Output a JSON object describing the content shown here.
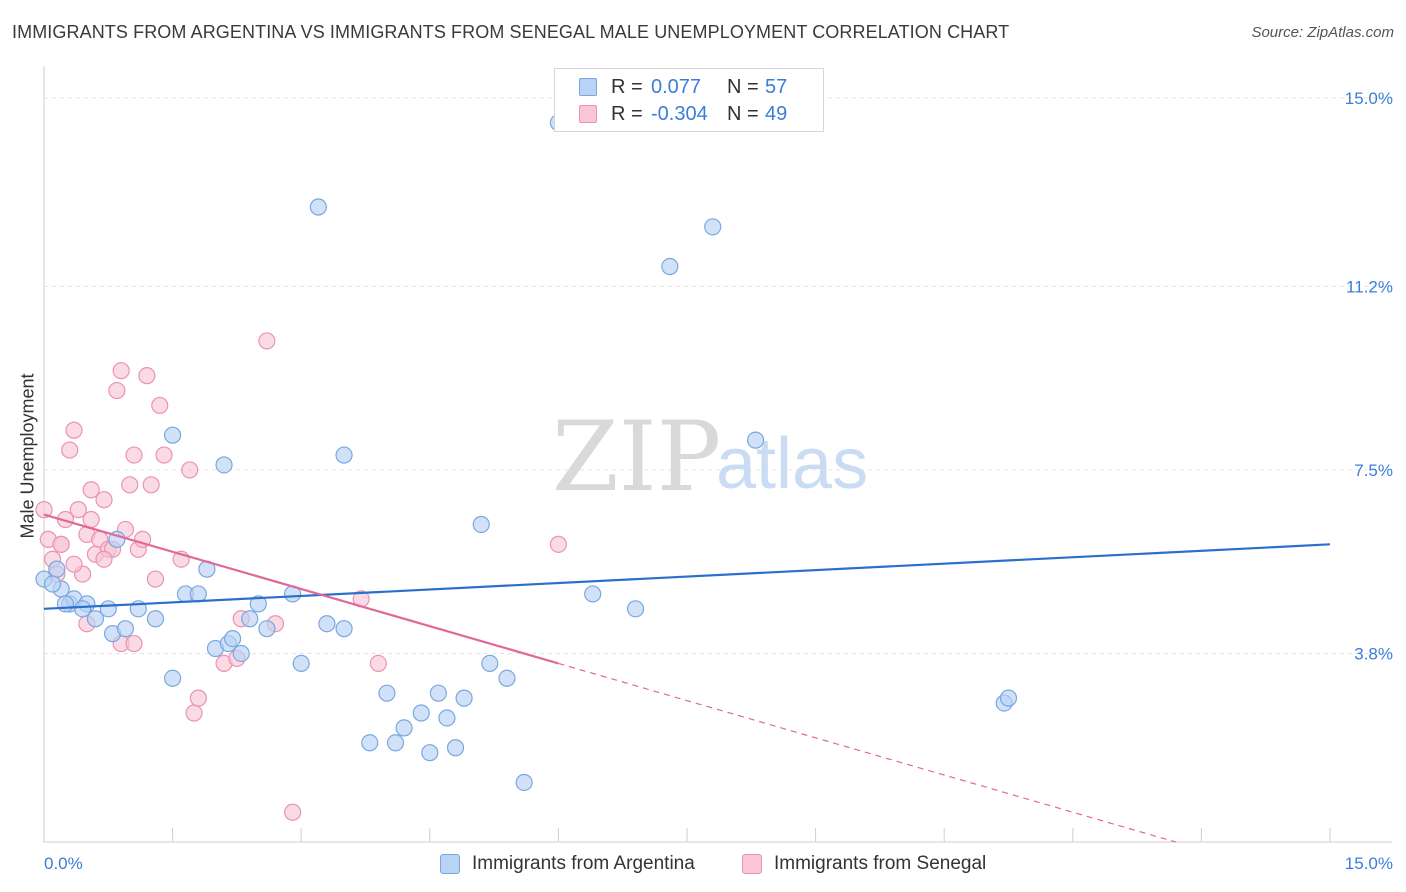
{
  "title": "IMMIGRANTS FROM ARGENTINA VS IMMIGRANTS FROM SENEGAL MALE UNEMPLOYMENT CORRELATION CHART",
  "source": "Source: ZipAtlas.com",
  "watermark": {
    "zip": "ZIP",
    "atlas": "atlas"
  },
  "legend": {
    "series1": {
      "r_label": "R =",
      "r_value": "0.077",
      "n_label": "N =",
      "n_value": "57"
    },
    "series2": {
      "r_label": "R =",
      "r_value": "-0.304",
      "n_label": "N =",
      "n_value": "49"
    }
  },
  "colors": {
    "blue_fill": "#b9d3f5",
    "blue_stroke": "#7aa7e0",
    "blue_line": "#2b6fcc",
    "pink_fill": "#f8c6d6",
    "pink_stroke": "#eb93b0",
    "pink_line": "#e2679a",
    "tick_text": "#3b7dd8",
    "grid": "#e3e3e3"
  },
  "chart_data": {
    "type": "scatter",
    "title": "IMMIGRANTS FROM ARGENTINA VS IMMIGRANTS FROM SENEGAL MALE UNEMPLOYMENT CORRELATION CHART",
    "xlabel": "",
    "ylabel": "Male Unemployment",
    "xlim": [
      0,
      15
    ],
    "ylim": [
      0,
      15.4
    ],
    "x_tick_labels": [
      "0.0%",
      "15.0%"
    ],
    "y_ticks": [
      3.8,
      7.5,
      11.2,
      15.0
    ],
    "y_tick_labels": [
      "3.8%",
      "7.5%",
      "11.2%",
      "15.0%"
    ],
    "grid": true,
    "legend_position": "top-center",
    "series": [
      {
        "name": "Immigrants from Argentina",
        "color": "#b9d3f5",
        "points": [
          [
            0.0,
            5.3
          ],
          [
            0.2,
            5.1
          ],
          [
            0.15,
            5.5
          ],
          [
            0.3,
            4.8
          ],
          [
            0.35,
            4.9
          ],
          [
            0.5,
            4.8
          ],
          [
            0.45,
            4.7
          ],
          [
            0.6,
            4.5
          ],
          [
            0.75,
            4.7
          ],
          [
            0.85,
            6.1
          ],
          [
            0.8,
            4.2
          ],
          [
            0.95,
            4.3
          ],
          [
            1.1,
            4.7
          ],
          [
            1.3,
            4.5
          ],
          [
            1.5,
            3.3
          ],
          [
            1.65,
            5.0
          ],
          [
            1.8,
            5.0
          ],
          [
            1.9,
            5.5
          ],
          [
            2.0,
            3.9
          ],
          [
            2.15,
            4.0
          ],
          [
            2.2,
            4.1
          ],
          [
            2.3,
            3.8
          ],
          [
            2.4,
            4.5
          ],
          [
            2.5,
            4.8
          ],
          [
            2.6,
            4.3
          ],
          [
            2.9,
            5.0
          ],
          [
            3.0,
            3.6
          ],
          [
            3.3,
            4.4
          ],
          [
            3.5,
            4.3
          ],
          [
            3.2,
            12.8
          ],
          [
            3.5,
            7.8
          ],
          [
            3.8,
            2.0
          ],
          [
            4.0,
            3.0
          ],
          [
            4.1,
            2.0
          ],
          [
            4.2,
            2.3
          ],
          [
            4.4,
            2.6
          ],
          [
            4.5,
            1.8
          ],
          [
            4.6,
            3.0
          ],
          [
            4.7,
            2.5
          ],
          [
            4.8,
            1.9
          ],
          [
            4.9,
            2.9
          ],
          [
            5.2,
            3.6
          ],
          [
            5.4,
            3.3
          ],
          [
            5.6,
            1.2
          ],
          [
            6.0,
            14.5
          ],
          [
            6.4,
            5.0
          ],
          [
            6.9,
            4.7
          ],
          [
            7.3,
            11.6
          ],
          [
            7.8,
            12.4
          ],
          [
            8.3,
            8.1
          ],
          [
            11.2,
            2.8
          ],
          [
            11.25,
            2.9
          ],
          [
            2.1,
            7.6
          ],
          [
            1.5,
            8.2
          ],
          [
            5.1,
            6.4
          ],
          [
            0.1,
            5.2
          ],
          [
            0.25,
            4.8
          ]
        ]
      },
      {
        "name": "Immigrants from Senegal",
        "color": "#f8c6d6",
        "points": [
          [
            0.0,
            6.7
          ],
          [
            0.05,
            6.1
          ],
          [
            0.1,
            5.7
          ],
          [
            0.15,
            5.4
          ],
          [
            0.2,
            6.0
          ],
          [
            0.25,
            6.5
          ],
          [
            0.3,
            7.9
          ],
          [
            0.35,
            8.3
          ],
          [
            0.4,
            6.7
          ],
          [
            0.45,
            5.4
          ],
          [
            0.5,
            6.2
          ],
          [
            0.55,
            6.5
          ],
          [
            0.6,
            5.8
          ],
          [
            0.65,
            6.1
          ],
          [
            0.7,
            6.9
          ],
          [
            0.75,
            5.9
          ],
          [
            0.8,
            5.9
          ],
          [
            0.85,
            9.1
          ],
          [
            0.9,
            9.5
          ],
          [
            0.95,
            6.3
          ],
          [
            1.0,
            7.2
          ],
          [
            1.05,
            7.8
          ],
          [
            1.1,
            5.9
          ],
          [
            1.15,
            6.1
          ],
          [
            1.2,
            9.4
          ],
          [
            1.25,
            7.2
          ],
          [
            1.3,
            5.3
          ],
          [
            1.35,
            8.8
          ],
          [
            0.5,
            4.4
          ],
          [
            0.7,
            5.7
          ],
          [
            0.9,
            4.0
          ],
          [
            1.05,
            4.0
          ],
          [
            1.7,
            7.5
          ],
          [
            1.6,
            5.7
          ],
          [
            1.75,
            2.6
          ],
          [
            1.8,
            2.9
          ],
          [
            2.1,
            3.6
          ],
          [
            2.25,
            3.7
          ],
          [
            2.3,
            4.5
          ],
          [
            2.6,
            10.1
          ],
          [
            2.7,
            4.4
          ],
          [
            2.9,
            0.6
          ],
          [
            3.7,
            4.9
          ],
          [
            3.9,
            3.6
          ],
          [
            6.0,
            6.0
          ],
          [
            0.35,
            5.6
          ],
          [
            0.2,
            6.0
          ],
          [
            0.55,
            7.1
          ],
          [
            1.4,
            7.8
          ]
        ]
      }
    ],
    "trend_lines": [
      {
        "series": "Immigrants from Argentina",
        "x": [
          0,
          15
        ],
        "y": [
          4.7,
          6.0
        ]
      },
      {
        "series": "Immigrants from Senegal",
        "x": [
          0,
          6.0
        ],
        "y": [
          6.6,
          3.6
        ],
        "dashed_extension_to": [
          15,
          -1.0
        ]
      }
    ]
  }
}
